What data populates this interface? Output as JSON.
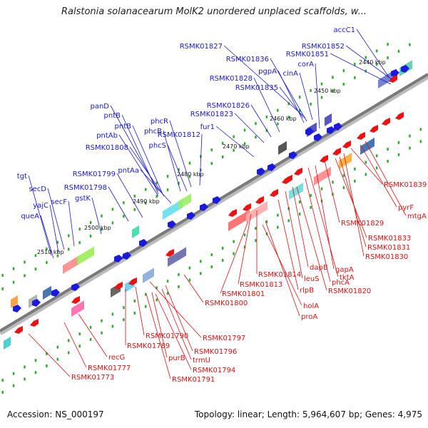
{
  "title": "Ralstonia solanacearum MolK2 unordered unplaced scaffolds, w...",
  "footer": {
    "accession": "Accession: NS_000197",
    "summary": "Topology: linear; Length: 5,964,607 bp; Genes: 4,975"
  },
  "colors": {
    "forward_label": "#1a1acc",
    "reverse_label": "#dd1111",
    "forward_arrow": "#1a1add",
    "reverse_arrow": "#ee1111",
    "backbone": "#888888",
    "tick_dots": "#33aa33"
  },
  "ticks": [
    "2440 kbp",
    "2450 kbp",
    "2460 kbp",
    "2470 kbp",
    "2480 kbp",
    "2490 kbp",
    "2500 kbp",
    "2510 kbp"
  ],
  "forward_labels": [
    "accC1",
    "RSMK01852",
    "RSMK01851",
    "RSMK01827",
    "RSMK01836",
    "corA",
    "cinA",
    "pgpA",
    "RSMK01828",
    "RSMK01835",
    "RSMK01826",
    "RSMK01823",
    "fur1",
    "phcR",
    "panD",
    "pntB",
    "pntB",
    "phcB",
    "RSMK01812",
    "pntAb",
    "phcS",
    "RSMK01808",
    "RSMK01799",
    "pntAa",
    "tgt",
    "secD",
    "RSMK01798",
    "gstK",
    "yajC",
    "secF",
    "queA"
  ],
  "reverse_labels": [
    "RSMK01839",
    "mtgA",
    "pyrF",
    "RSMK01829",
    "RSMK01833",
    "RSMK01831",
    "RSMK01830",
    "tktA",
    "gapA",
    "dapB",
    "phcA",
    "leuS",
    "RSMK01820",
    "rlpB",
    "RSMK01814",
    "RSMK01813",
    "RSMK01801",
    "holA",
    "proA",
    "RSMK01800",
    "RSMK01797",
    "RSMK01790",
    "RSMK01796",
    "RSMK01789",
    "trmU",
    "purB",
    "RSMK01794",
    "RSMK01791",
    "recG",
    "RSMK01777",
    "RSMK01773"
  ]
}
